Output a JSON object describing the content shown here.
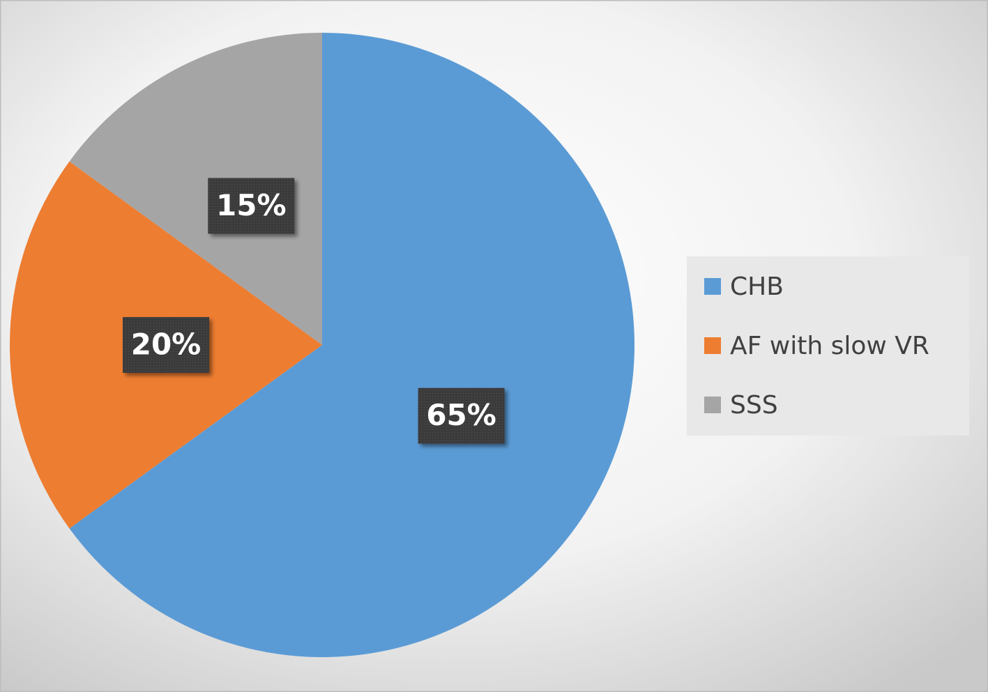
{
  "chart_data": {
    "type": "pie",
    "categories": [
      "CHB",
      "AF with slow VR",
      "SSS"
    ],
    "values": [
      65,
      20,
      15
    ],
    "value_labels": [
      "65%",
      "20%",
      "15%"
    ],
    "colors": [
      "#5b9bd5",
      "#ed7d31",
      "#a5a5a5"
    ],
    "legend": "right"
  }
}
